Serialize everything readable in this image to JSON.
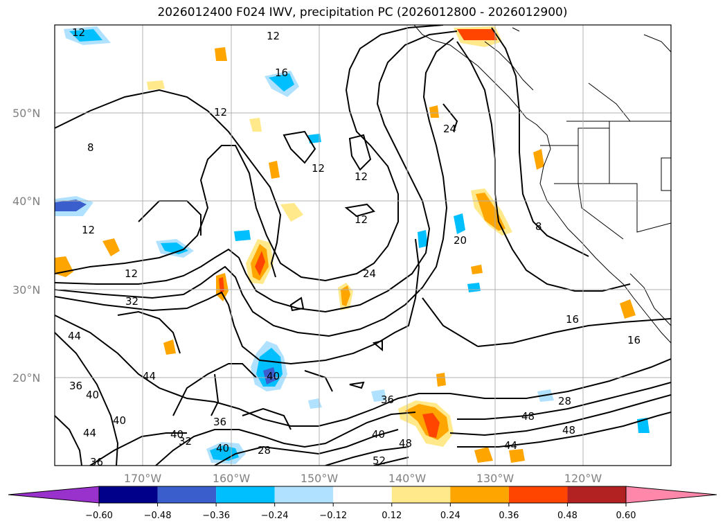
{
  "title": "2026012400 F024 IWV, precipitation PC (2026012800 - 2026012900)",
  "lat_labels": [
    "50°N",
    "40°N",
    "30°N",
    "20°N"
  ],
  "lon_labels": [
    "170°W",
    "160°W",
    "150°W",
    "140°W",
    "130°W",
    "120°W"
  ],
  "contour_labels": [
    "12",
    "12",
    "16",
    "12",
    "8",
    "12",
    "12",
    "12",
    "24",
    "12",
    "20",
    "8",
    "24",
    "12",
    "32",
    "44",
    "44",
    "36",
    "40",
    "40",
    "44",
    "40",
    "32",
    "40",
    "36",
    "28",
    "36",
    "40",
    "36",
    "48",
    "44",
    "48",
    "52",
    "16",
    "16",
    "28",
    "40"
  ],
  "colorbar": {
    "ticks": [
      "−0.60",
      "−0.48",
      "−0.36",
      "−0.24",
      "−0.12",
      "0.12",
      "0.24",
      "0.36",
      "0.48",
      "0.60"
    ],
    "colors": [
      "#9932cc",
      "#00008b",
      "#3a5fcd",
      "#00bfff",
      "#b0e2ff",
      "#ffffff",
      "#ffe98a",
      "#ffa500",
      "#ff4500",
      "#b22222",
      "#ff88aa"
    ]
  }
}
